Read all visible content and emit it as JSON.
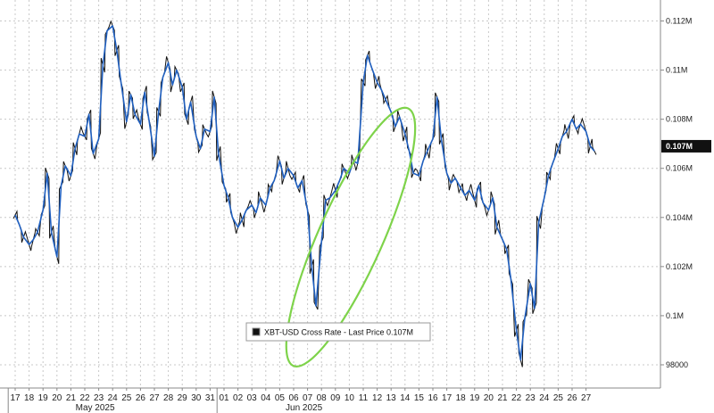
{
  "chart_data": {
    "type": "line",
    "legend": {
      "label": "XBT-USD Cross Rate - Last Price 0.107M",
      "placement": "bottom-center"
    },
    "last_price_label": "0.107M",
    "y_ticks": [
      {
        "value": 98000,
        "label": "98000"
      },
      {
        "value": 100000,
        "label": "0.1M"
      },
      {
        "value": 102000,
        "label": "0.102M"
      },
      {
        "value": 104000,
        "label": "0.104M"
      },
      {
        "value": 106000,
        "label": "0.106M"
      },
      {
        "value": 108000,
        "label": "0.108M"
      },
      {
        "value": 110000,
        "label": "0.11M"
      },
      {
        "value": 112000,
        "label": "0.112M"
      }
    ],
    "ylim": [
      97200,
      113000
    ],
    "x_day_labels": [
      "17",
      "18",
      "19",
      "20",
      "21",
      "22",
      "23",
      "24",
      "25",
      "26",
      "27",
      "28",
      "29",
      "30",
      "31",
      "01",
      "02",
      "03",
      "04",
      "05",
      "06",
      "07",
      "08",
      "09",
      "10",
      "11",
      "12",
      "13",
      "14",
      "15",
      "16",
      "17",
      "18",
      "19",
      "20",
      "21",
      "22",
      "23",
      "24",
      "25",
      "26",
      "27"
    ],
    "month_labels": [
      {
        "label": "May 2025",
        "at_day_index": 6
      },
      {
        "label": "Jun 2025",
        "at_day_index": 21
      }
    ],
    "grid": true,
    "series": [
      {
        "name": "XBT-USD Cross Rate",
        "color": "#1f5fbf",
        "x": [
          0,
          0.3,
          0.6,
          1,
          1.3,
          1.6,
          2,
          2.3,
          2.6,
          3,
          3.3,
          3.6,
          4,
          4.3,
          4.6,
          5,
          5.3,
          5.6,
          6,
          6.3,
          6.6,
          7,
          7.3,
          7.6,
          8,
          8.3,
          8.6,
          9,
          9.3,
          9.6,
          10,
          10.3,
          10.6,
          11,
          11.3,
          11.6,
          12,
          12.3,
          12.6,
          13,
          13.3,
          13.6,
          14,
          14.3,
          14.6,
          15,
          15.3,
          15.6,
          16,
          16.3,
          16.6,
          17,
          17.3,
          17.6,
          18,
          18.3,
          18.6,
          19,
          19.3,
          19.6,
          20,
          20.3,
          20.6,
          21,
          21.3,
          21.6,
          22,
          22.3,
          22.6,
          23,
          23.3,
          23.6,
          24,
          24.3,
          24.6,
          25,
          25.3,
          25.6,
          26,
          26.3,
          26.6,
          27,
          27.3,
          27.6,
          28,
          28.3,
          28.6,
          29,
          29.3,
          29.6,
          30,
          30.3,
          30.6,
          31,
          31.3,
          31.6,
          32,
          32.3,
          32.6,
          33,
          33.3,
          33.6,
          34,
          34.3,
          34.6,
          35,
          35.3,
          35.6,
          36,
          36.3,
          36.6,
          37,
          37.3,
          37.6,
          38,
          38.3,
          38.6,
          39,
          39.3,
          39.6,
          40,
          40.3,
          40.6,
          41,
          41.3,
          41.6
        ],
        "y": [
          104100,
          103700,
          103200,
          102900,
          103100,
          103400,
          104300,
          105800,
          103400,
          102400,
          105300,
          106100,
          105700,
          106800,
          107400,
          107300,
          108200,
          106600,
          107200,
          110200,
          111600,
          111800,
          110800,
          109500,
          107900,
          109000,
          108200,
          107800,
          109100,
          108000,
          106500,
          108300,
          109700,
          110300,
          109400,
          110000,
          109300,
          108000,
          108700,
          107300,
          106800,
          107600,
          107500,
          108900,
          106600,
          105300,
          104800,
          104000,
          103600,
          103900,
          104300,
          104500,
          104200,
          104800,
          104500,
          105200,
          105500,
          106300,
          105600,
          106000,
          105700,
          105200,
          105500,
          104300,
          102000,
          100400,
          103000,
          104700,
          104800,
          105100,
          105500,
          106000,
          105800,
          106300,
          106200,
          109500,
          110600,
          110100,
          109500,
          109200,
          108800,
          108300,
          107700,
          108100,
          107400,
          106700,
          105800,
          105700,
          106300,
          106700,
          107200,
          108900,
          107200,
          105800,
          105400,
          105600,
          105200,
          104900,
          105100,
          104700,
          105300,
          104600,
          104300,
          104800,
          103600,
          103100,
          102700,
          101500,
          99400,
          98200,
          99900,
          101300,
          100300,
          103800,
          104800,
          105700,
          106200,
          106800,
          107300,
          107500,
          108000,
          107600,
          107800,
          107500,
          106900,
          106700
        ]
      }
    ],
    "annotations": [
      {
        "type": "ellipse",
        "color": "#7ed34a",
        "label": ""
      }
    ]
  }
}
